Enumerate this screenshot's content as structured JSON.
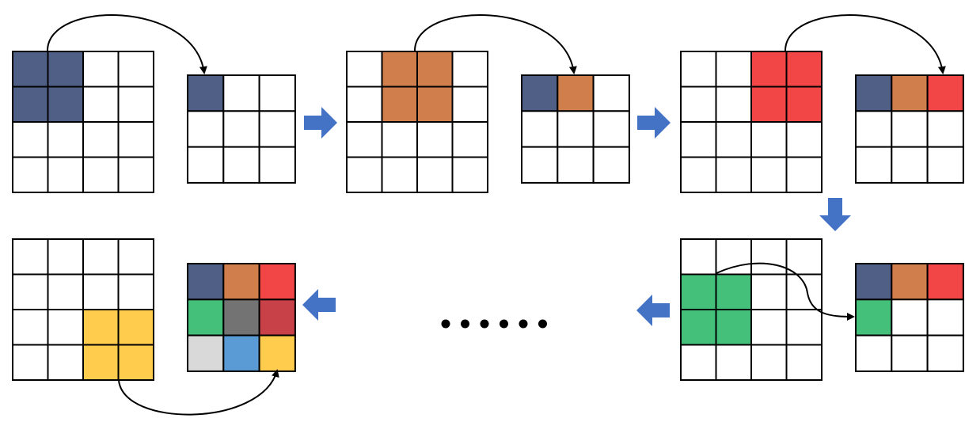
{
  "colors": {
    "grid_line": "#000000",
    "empty_cell": "#ffffff",
    "arrow_blue": "#4472c4",
    "connector": "#000000",
    "ellipsis": "#000000"
  },
  "palette": {
    "navy": "#4f5f86",
    "brown": "#d07e4b",
    "red": "#f24646",
    "green": "#44c07b",
    "gray": "#737373",
    "darkred": "#c84048",
    "lightgray": "#d9d9d9",
    "blue": "#5b9bd5",
    "yellow": "#ffcc4d"
  },
  "steps": [
    {
      "id": "step-1",
      "input_highlight": {
        "row": 0,
        "col": 0,
        "size": 2,
        "color": "navy"
      },
      "output": [
        [
          "navy",
          "",
          ""
        ],
        [
          "",
          "",
          ""
        ],
        [
          "",
          "",
          ""
        ]
      ]
    },
    {
      "id": "step-2",
      "input_highlight": {
        "row": 0,
        "col": 1,
        "size": 2,
        "color": "brown"
      },
      "output": [
        [
          "navy",
          "brown",
          ""
        ],
        [
          "",
          "",
          ""
        ],
        [
          "",
          "",
          ""
        ]
      ]
    },
    {
      "id": "step-3",
      "input_highlight": {
        "row": 0,
        "col": 2,
        "size": 2,
        "color": "red"
      },
      "output": [
        [
          "navy",
          "brown",
          "red"
        ],
        [
          "",
          "",
          ""
        ],
        [
          "",
          "",
          ""
        ]
      ]
    },
    {
      "id": "step-4",
      "input_highlight": {
        "row": 1,
        "col": 0,
        "size": 2,
        "color": "green"
      },
      "output": [
        [
          "navy",
          "brown",
          "red"
        ],
        [
          "green",
          "",
          ""
        ],
        [
          "",
          "",
          ""
        ]
      ]
    },
    {
      "id": "step-final",
      "input_highlight": {
        "row": 2,
        "col": 2,
        "size": 2,
        "color": "yellow"
      },
      "output": [
        [
          "navy",
          "brown",
          "red"
        ],
        [
          "green",
          "gray",
          "darkred"
        ],
        [
          "lightgray",
          "blue",
          "yellow"
        ]
      ]
    }
  ],
  "flow_arrows": [
    {
      "id": "right-1",
      "direction": "right"
    },
    {
      "id": "right-2",
      "direction": "right"
    },
    {
      "id": "down-1",
      "direction": "down"
    },
    {
      "id": "left-1",
      "direction": "left"
    },
    {
      "id": "left-2",
      "direction": "left"
    }
  ],
  "ellipsis_dots": 6
}
